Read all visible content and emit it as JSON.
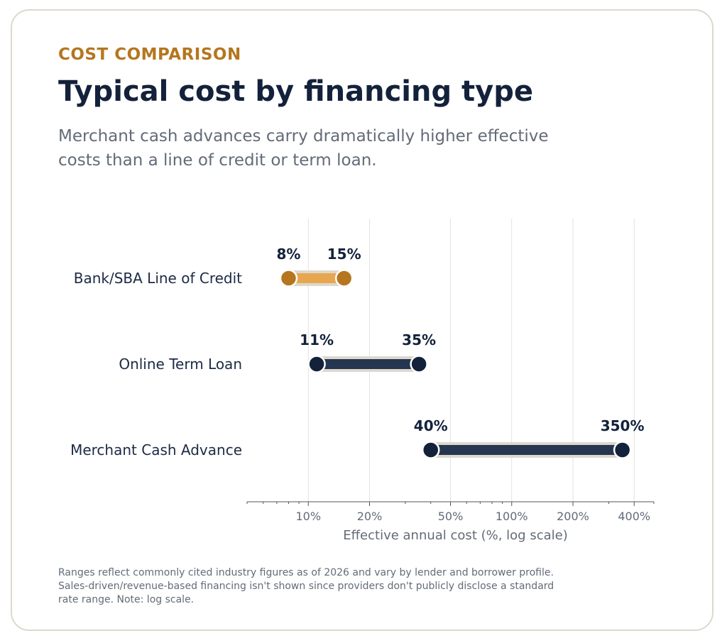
{
  "header": {
    "eyebrow": "COST COMPARISON",
    "title": "Typical cost by financing type",
    "subtitle": "Merchant cash advances carry dramatically higher effective costs than a line of credit or term loan."
  },
  "footnote": "Ranges reflect commonly cited industry figures as of 2026 and vary by lender and borrower profile. Sales-driven/revenue-based financing isn't shown since providers don't publicly disclose a standard rate range. Note: log scale.",
  "colors": {
    "accent": "#b5761f",
    "accent_light": "#e8a74e",
    "navy": "#13213b",
    "bar_navy": "#263550",
    "halo": "#ddd8cd",
    "grid": "#e4e1da",
    "muted_text": "#636b78"
  },
  "chart_data": {
    "type": "range",
    "xlabel": "Effective annual cost (%, log scale)",
    "xscale": "log",
    "xlim": [
      5,
      500
    ],
    "ticks": [
      {
        "value": 10,
        "label": "10%"
      },
      {
        "value": 20,
        "label": "20%"
      },
      {
        "value": 50,
        "label": "50%"
      },
      {
        "value": 100,
        "label": "100%"
      },
      {
        "value": 200,
        "label": "200%"
      },
      {
        "value": 400,
        "label": "400%"
      }
    ],
    "grid": true,
    "series": [
      {
        "category": "Bank/SBA Line of Credit",
        "low": 8,
        "high": 15,
        "low_label": "8%",
        "high_label": "15%",
        "color": "accent"
      },
      {
        "category": "Online Term Loan",
        "low": 11,
        "high": 35,
        "low_label": "11%",
        "high_label": "35%",
        "color": "navy"
      },
      {
        "category": "Merchant Cash Advance",
        "low": 40,
        "high": 350,
        "low_label": "40%",
        "high_label": "350%",
        "color": "navy"
      }
    ]
  }
}
